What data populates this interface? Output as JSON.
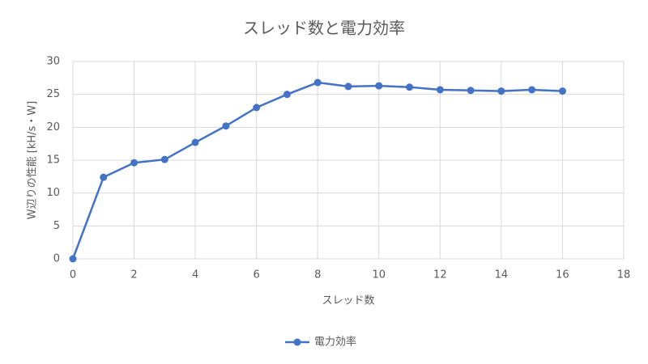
{
  "chart_data": {
    "type": "line",
    "title": "スレッド数と電力効率",
    "x_label": "スレッド数",
    "y_label": "W辺りの性能 [kH/s・W]",
    "x": [
      0,
      1,
      2,
      3,
      4,
      5,
      6,
      7,
      8,
      9,
      10,
      11,
      12,
      13,
      14,
      15,
      16
    ],
    "series": [
      {
        "name": "電力効率",
        "color": "#4472c4",
        "values": [
          0,
          12.4,
          14.6,
          15.1,
          17.7,
          20.2,
          23.0,
          25.0,
          26.8,
          26.2,
          26.3,
          26.1,
          25.7,
          25.6,
          25.5,
          25.7,
          25.5
        ]
      }
    ],
    "xlim": [
      0,
      18
    ],
    "xticks": [
      0,
      2,
      4,
      6,
      8,
      10,
      12,
      14,
      16,
      18
    ],
    "ylim": [
      0,
      30
    ],
    "yticks": [
      0,
      5,
      10,
      15,
      20,
      25,
      30
    ],
    "grid": true,
    "legend": "bottom"
  }
}
